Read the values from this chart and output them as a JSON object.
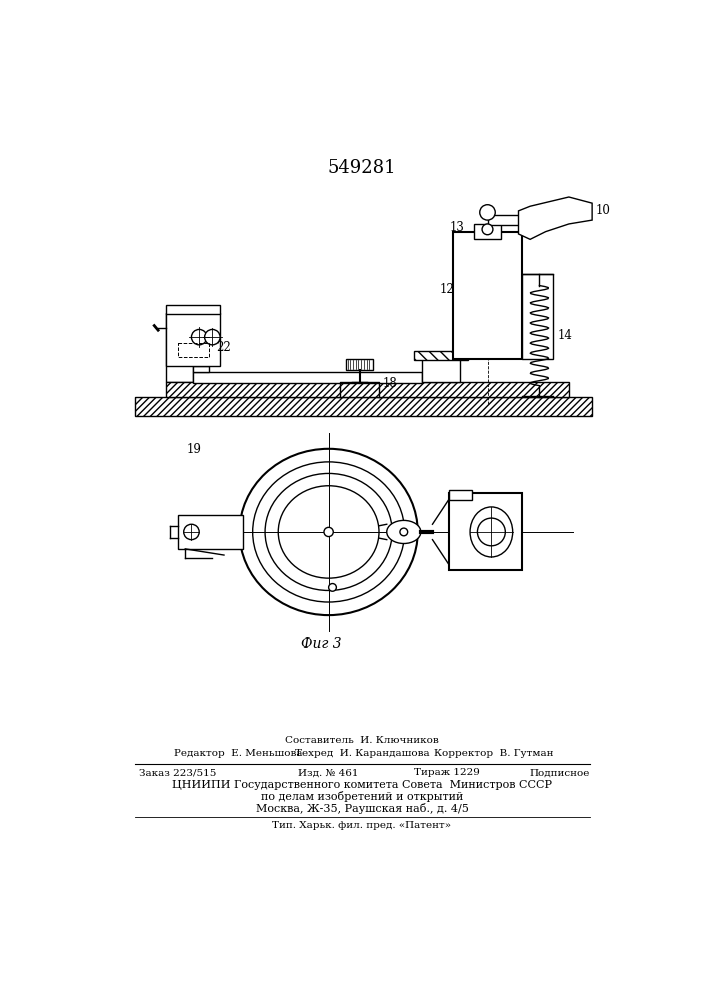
{
  "title": "549281",
  "bg_color": "#ffffff",
  "fig_caption": "Фиг 3",
  "footer_line1": "Составитель  И. Ключников",
  "footer_line2_left": "Редактор  Е. Меньшова",
  "footer_line2_mid": "Техред  И. Карандашова",
  "footer_line2_right": "Корректор  В. Гутман",
  "footer_line3_a": "Заказ 223/515",
  "footer_line3_b": "Изд. № 461",
  "footer_line3_c": "Тираж 1229",
  "footer_line3_d": "Подписное",
  "footer_line4": "ЦНИИПИ Государственного комитета Совета  Министров СССР",
  "footer_line5": "по делам изобретений и открытий",
  "footer_line6": "Москва, Ж-35, Раушская наб., д. 4/5",
  "footer_line7": "Тип. Харьк. фил. пред. «Патент»"
}
